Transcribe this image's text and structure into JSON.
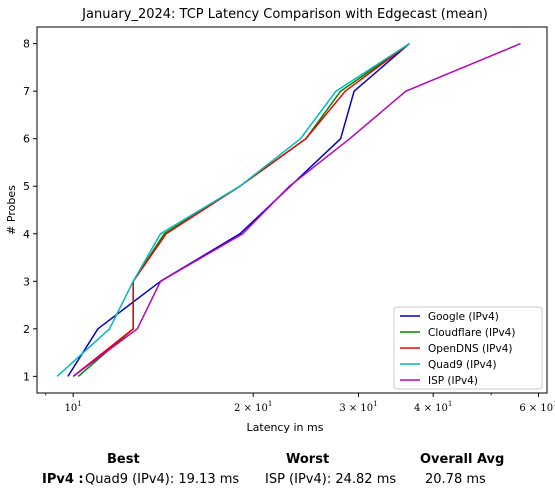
{
  "chart_data": {
    "type": "line",
    "title": "January_2024: TCP Latency Comparison with Edgecast (mean)",
    "xlabel": "Latency in ms",
    "ylabel": "# Probes",
    "xscale": "log",
    "xlim": [
      8.7,
      62
    ],
    "ylim": [
      0.65,
      8.35
    ],
    "x_ticks": [
      {
        "value": 10,
        "base": "10",
        "exp": "1"
      },
      {
        "value": 20,
        "base": "2 × 10",
        "exp": "1"
      },
      {
        "value": 30,
        "base": "3 × 10",
        "exp": "1"
      },
      {
        "value": 40,
        "base": "4 × 10",
        "exp": "1"
      },
      {
        "value": 60,
        "base": "6 × 10",
        "exp": "1"
      }
    ],
    "y_ticks": [
      1,
      2,
      3,
      4,
      5,
      6,
      7,
      8
    ],
    "legend_position": "bottom-right",
    "series": [
      {
        "name": "Google (IPv4)",
        "color": "#0000cc",
        "points": [
          [
            9.8,
            1
          ],
          [
            11,
            2
          ],
          [
            14,
            3
          ],
          [
            19,
            4
          ],
          [
            28,
            6
          ],
          [
            29.5,
            7
          ],
          [
            36.5,
            8
          ]
        ]
      },
      {
        "name": "Cloudflare (IPv4)",
        "color": "#008800",
        "points": [
          [
            10.2,
            1
          ],
          [
            12.6,
            2
          ],
          [
            12.6,
            3
          ],
          [
            14.2,
            4
          ],
          [
            19,
            5
          ],
          [
            24.5,
            6
          ],
          [
            28,
            7
          ],
          [
            36.5,
            8
          ]
        ]
      },
      {
        "name": "OpenDNS (IPv4)",
        "color": "#ee0000",
        "points": [
          [
            10,
            1
          ],
          [
            12.6,
            2
          ],
          [
            12.6,
            3
          ],
          [
            14.3,
            4
          ],
          [
            19,
            5
          ],
          [
            24.5,
            6
          ],
          [
            28.5,
            7
          ],
          [
            36.5,
            8
          ]
        ]
      },
      {
        "name": "Quad9 (IPv4)",
        "color": "#00bbbb",
        "points": [
          [
            9.4,
            1
          ],
          [
            11.5,
            2
          ],
          [
            12.6,
            3
          ],
          [
            14,
            4
          ],
          [
            19,
            5
          ],
          [
            24,
            6
          ],
          [
            27.5,
            7
          ],
          [
            36.5,
            8
          ]
        ]
      },
      {
        "name": "ISP (IPv4)",
        "color": "#bb00bb",
        "points": [
          [
            10,
            1
          ],
          [
            12.8,
            2
          ],
          [
            14,
            3
          ],
          [
            19.2,
            4
          ],
          [
            23,
            5
          ],
          [
            29,
            6
          ],
          [
            36,
            7
          ],
          [
            56,
            8
          ]
        ]
      }
    ]
  },
  "summary": {
    "best_header": "Best",
    "worst_header": "Worst",
    "avg_header": "Overall Avg",
    "row_label": "IPv4 :",
    "best_value": "Quad9 (IPv4): 19.13 ms",
    "worst_value": "ISP (IPv4): 24.82 ms",
    "avg_value": "20.78 ms"
  }
}
